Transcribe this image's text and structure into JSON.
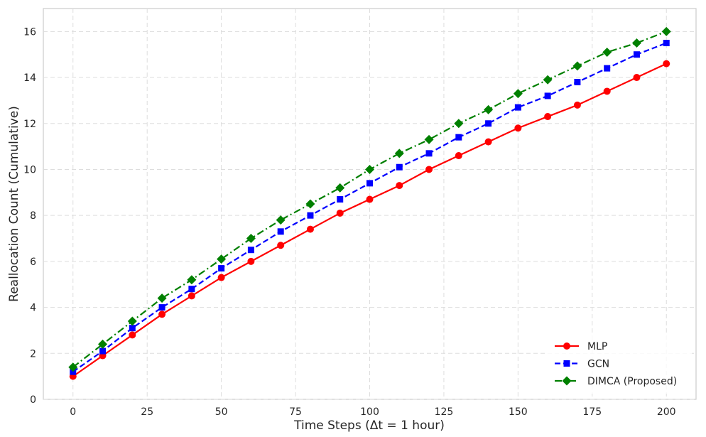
{
  "chart_data": {
    "type": "line",
    "title": "",
    "xlabel": "Time Steps (Δt = 1 hour)",
    "ylabel": "Reallocation Count (Cumulative)",
    "xlim": [
      -10,
      210
    ],
    "ylim": [
      0,
      17
    ],
    "xticks": [
      0,
      25,
      50,
      75,
      100,
      125,
      150,
      175,
      200
    ],
    "yticks": [
      0,
      2,
      4,
      6,
      8,
      10,
      12,
      14,
      16
    ],
    "grid": true,
    "legend_position": "lower-right",
    "x": [
      0,
      10,
      20,
      30,
      40,
      50,
      60,
      70,
      80,
      90,
      100,
      110,
      120,
      130,
      140,
      150,
      160,
      170,
      180,
      190,
      200
    ],
    "series": [
      {
        "name": "MLP",
        "color": "#ff0000",
        "line_style": "solid",
        "marker": "circle",
        "values": [
          1.0,
          1.9,
          2.8,
          3.7,
          4.5,
          5.3,
          6.0,
          6.7,
          7.4,
          8.1,
          8.7,
          9.3,
          10.0,
          10.6,
          11.2,
          11.8,
          12.3,
          12.8,
          13.4,
          14.0,
          14.6
        ]
      },
      {
        "name": "GCN",
        "color": "#0000ff",
        "line_style": "dashed",
        "marker": "square",
        "values": [
          1.2,
          2.1,
          3.1,
          4.0,
          4.8,
          5.7,
          6.5,
          7.3,
          8.0,
          8.7,
          9.4,
          10.1,
          10.7,
          11.4,
          12.0,
          12.7,
          13.2,
          13.8,
          14.4,
          15.0,
          15.5
        ]
      },
      {
        "name": "DIMCA (Proposed)",
        "color": "#008000",
        "line_style": "dashdot",
        "marker": "diamond",
        "values": [
          1.4,
          2.4,
          3.4,
          4.4,
          5.2,
          6.1,
          7.0,
          7.8,
          8.5,
          9.2,
          10.0,
          10.7,
          11.3,
          12.0,
          12.6,
          13.3,
          13.9,
          14.5,
          15.1,
          15.5,
          16.0
        ]
      }
    ]
  }
}
